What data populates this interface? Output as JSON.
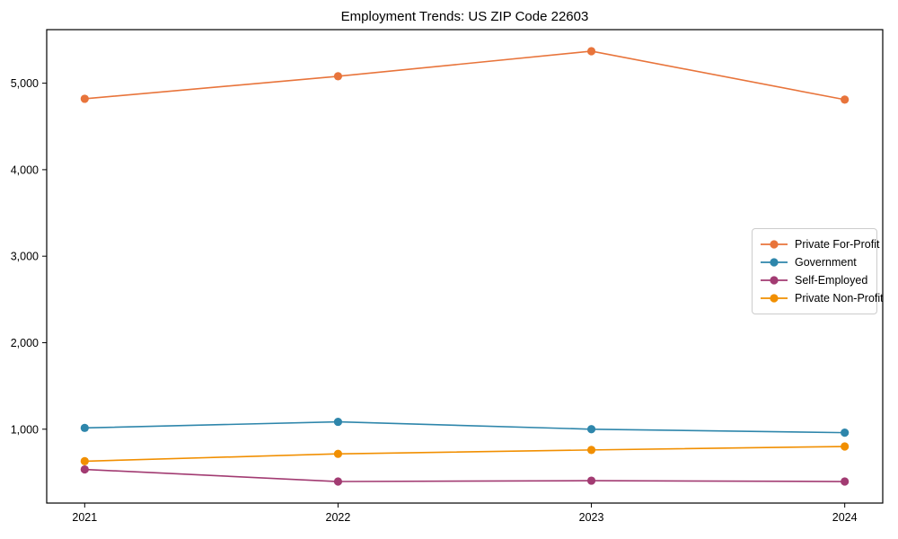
{
  "chart_data": {
    "type": "line",
    "title": "Employment Trends: US ZIP Code 22603",
    "x": [
      2021,
      2022,
      2023,
      2024
    ],
    "series": [
      {
        "name": "Private For-Profit",
        "color": "#E8743B",
        "values": [
          4820,
          5080,
          5370,
          4810
        ]
      },
      {
        "name": "Government",
        "color": "#2E86AB",
        "values": [
          1015,
          1085,
          1000,
          960
        ]
      },
      {
        "name": "Self-Employed",
        "color": "#A23B72",
        "values": [
          535,
          395,
          405,
          395
        ]
      },
      {
        "name": "Private Non-Profit",
        "color": "#F18F01",
        "values": [
          630,
          715,
          760,
          800
        ]
      }
    ],
    "xlabel": "",
    "ylabel": "",
    "xticks": [
      2021,
      2022,
      2023,
      2024
    ],
    "yticks": [
      1000,
      2000,
      3000,
      4000,
      5000
    ],
    "xlim": [
      2020.85,
      2024.15
    ],
    "ylim": [
      146,
      5619
    ],
    "grid": false,
    "legend_position": "center right",
    "axis_color": "#000000",
    "tick_label_color": "#000000"
  }
}
